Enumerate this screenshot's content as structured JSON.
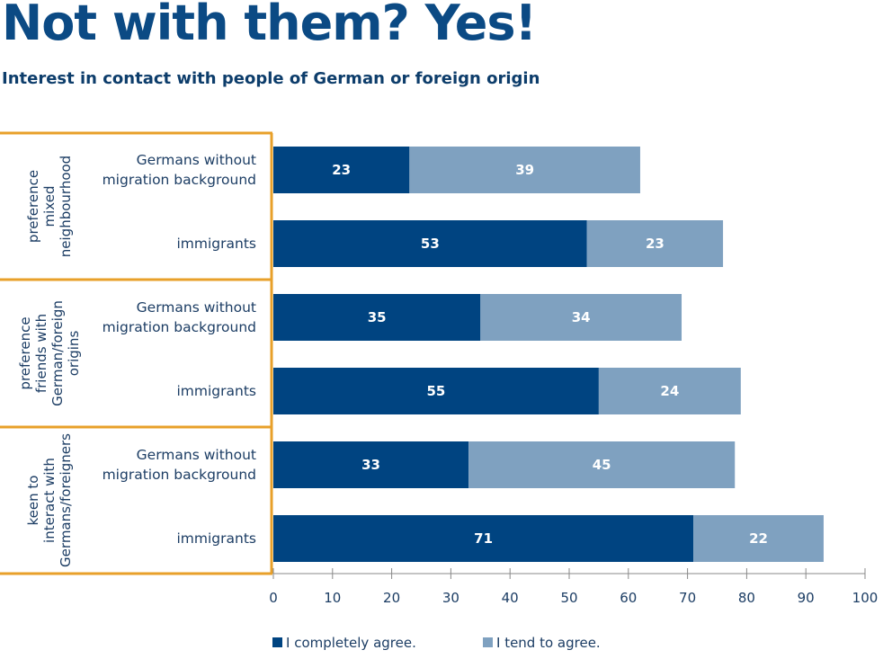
{
  "title": "Not with them? Yes!",
  "subtitle": "Interest in contact with people of German or foreign origin",
  "colors": {
    "completely": "#004481",
    "tend": "#7fa1c0",
    "frame": "#e8a02a",
    "axis": "#888888",
    "text": "#1c3d64"
  },
  "chart_data": {
    "type": "bar",
    "orientation": "horizontal",
    "stacked": true,
    "title": "Not with them? Yes!",
    "subtitle": "Interest in contact with people of German or foreign origin",
    "xlabel": "",
    "ylabel": "",
    "xlim": [
      0,
      100
    ],
    "xticks": [
      0,
      10,
      20,
      30,
      40,
      50,
      60,
      70,
      80,
      90,
      100
    ],
    "grid": false,
    "legend_position": "bottom",
    "groups": [
      {
        "label": [
          "preference",
          "mixed",
          "neighbourhood"
        ],
        "categories": [
          0,
          1
        ]
      },
      {
        "label": [
          "preference",
          "friends with",
          "German/foreign",
          "origins"
        ],
        "categories": [
          2,
          3
        ]
      },
      {
        "label": [
          "keen to",
          "interact with",
          "Germans/foreigners"
        ],
        "categories": [
          4,
          5
        ]
      }
    ],
    "categories": [
      [
        "Germans without",
        "migration background"
      ],
      [
        "immigrants"
      ],
      [
        "Germans without",
        "migration background"
      ],
      [
        "immigrants"
      ],
      [
        "Germans without",
        "migration background"
      ],
      [
        "immigrants"
      ]
    ],
    "series": [
      {
        "name": "I completely agree.",
        "color": "#004481",
        "values": [
          23,
          53,
          35,
          55,
          33,
          71
        ]
      },
      {
        "name": "I tend to agree.",
        "color": "#7fa1c0",
        "values": [
          39,
          23,
          34,
          24,
          45,
          22
        ]
      }
    ]
  }
}
